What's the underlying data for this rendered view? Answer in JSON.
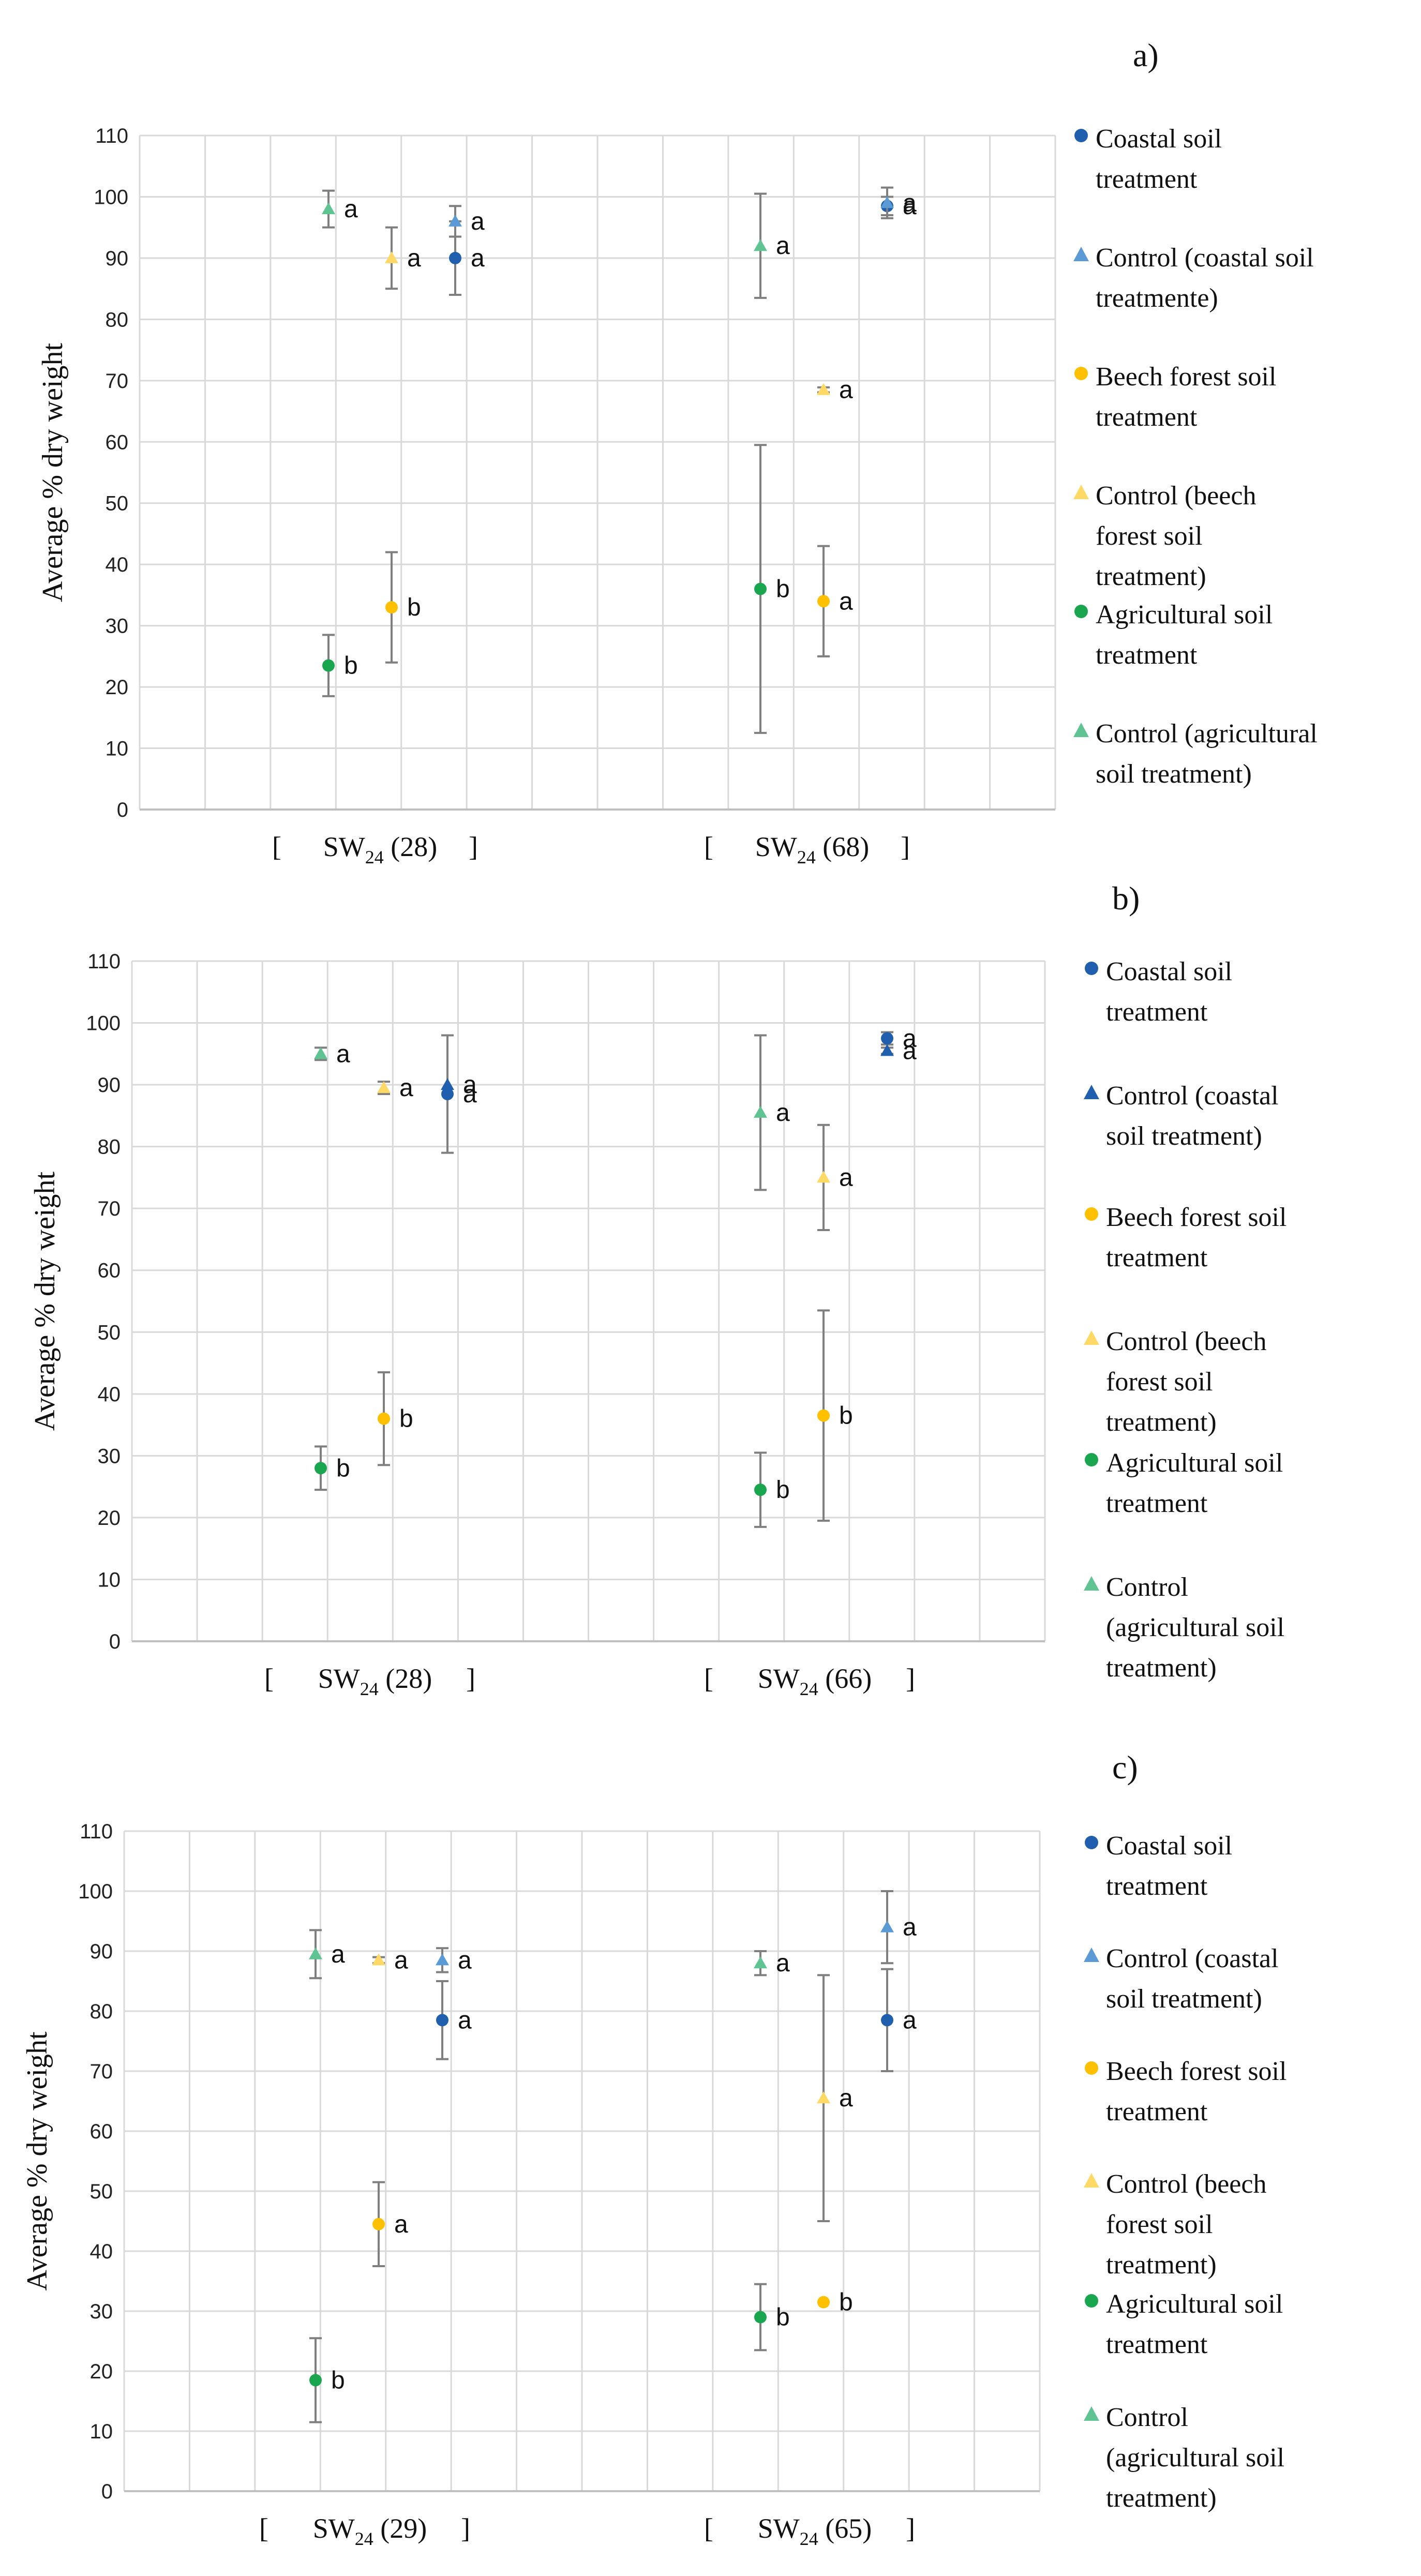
{
  "colors": {
    "coastal": "#1f5fae",
    "coastal_ctrl": "#5b9bd5",
    "beech": "#ffc000",
    "beech_ctrl": "#ffd966",
    "agri": "#1aa64f",
    "agri_ctrl": "#5fc491",
    "grid": "#d9d9d9",
    "axis": "#bfbfbf",
    "errbar": "#7f7f7f"
  },
  "legend": [
    {
      "label": "Coastal soil\ntreatment",
      "marker": "circle",
      "color_key": "coastal"
    },
    {
      "label": "Control (coastal soil\ntreatmente)",
      "marker": "triangle",
      "color_key": "coastal_ctrl"
    },
    {
      "label": "Beech forest soil\ntreatment",
      "marker": "circle",
      "color_key": "beech"
    },
    {
      "label": "Control (beech\nforest soil\ntreatment)",
      "marker": "triangle",
      "color_key": "beech_ctrl"
    },
    {
      "label": "Agricultural soil\ntreatment",
      "marker": "circle",
      "color_key": "agri"
    },
    {
      "label": "Control (agricultural\nsoil treatment)",
      "marker": "triangle",
      "color_key": "agri_ctrl"
    }
  ],
  "chart_data": [
    {
      "panel_label": "a)",
      "type": "scatter",
      "ylabel": "Average % dry weight",
      "ylim": [
        0,
        110
      ],
      "yticks": [
        0,
        10,
        20,
        30,
        40,
        50,
        60,
        70,
        80,
        90,
        100,
        110
      ],
      "categories": [
        {
          "bracket_open": "[",
          "name": "SW",
          "sub": "24",
          "n": "(28)",
          "bracket_close": "]"
        },
        {
          "bracket_open": "[",
          "name": "SW",
          "sub": "24",
          "n": "(68)",
          "bracket_close": "]"
        }
      ],
      "legend_labels": [
        "Coastal soil\ntreatment",
        "Control (coastal soil\ntreatmente)",
        "Beech forest soil\ntreatment",
        "Control (beech\nforest soil\ntreatment)",
        "Agricultural soil\ntreatment",
        "Control (agricultural\nsoil treatment)"
      ],
      "series": [
        {
          "name": "Coastal soil treatment",
          "color_key": "coastal",
          "marker": "circle",
          "points": [
            {
              "cat": 0,
              "slot": 2,
              "y": 90,
              "err": 6,
              "label": "a"
            },
            {
              "cat": 1,
              "slot": 2,
              "y": 98.5,
              "err": 1.5,
              "label": "a"
            }
          ]
        },
        {
          "name": "Control (coastal soil treatmente)",
          "color_key": "coastal_ctrl",
          "marker": "triangle",
          "points": [
            {
              "cat": 0,
              "slot": 2,
              "y": 96,
              "err": 2.5,
              "label": "a"
            },
            {
              "cat": 1,
              "slot": 2,
              "y": 99,
              "err": 2.5,
              "label": "a"
            }
          ]
        },
        {
          "name": "Beech forest soil treatment",
          "color_key": "beech",
          "marker": "circle",
          "points": [
            {
              "cat": 0,
              "slot": 1,
              "y": 33,
              "err": 9,
              "label": "b"
            },
            {
              "cat": 1,
              "slot": 1,
              "y": 34,
              "err": 9,
              "label": "a"
            }
          ]
        },
        {
          "name": "Control (beech forest soil treatment)",
          "color_key": "beech_ctrl",
          "marker": "triangle",
          "points": [
            {
              "cat": 0,
              "slot": 1,
              "y": 90,
              "err": 5,
              "label": "a"
            },
            {
              "cat": 1,
              "slot": 1,
              "y": 68.5,
              "err": 0.4,
              "label": "a"
            }
          ]
        },
        {
          "name": "Agricultural soil treatment",
          "color_key": "agri",
          "marker": "circle",
          "points": [
            {
              "cat": 0,
              "slot": 0,
              "y": 23.5,
              "err": 5,
              "label": "b"
            },
            {
              "cat": 1,
              "slot": 0,
              "y": 36,
              "err": 23.5,
              "label": "b"
            }
          ]
        },
        {
          "name": "Control (agricultural soil treatment)",
          "color_key": "agri_ctrl",
          "marker": "triangle",
          "points": [
            {
              "cat": 0,
              "slot": 0,
              "y": 98,
              "err": 3,
              "label": "a"
            },
            {
              "cat": 1,
              "slot": 0,
              "y": 92,
              "err": 8.5,
              "label": "a"
            }
          ]
        }
      ]
    },
    {
      "panel_label": "b)",
      "type": "scatter",
      "ylabel": "Average % dry weight",
      "ylim": [
        0,
        110
      ],
      "yticks": [
        0,
        10,
        20,
        30,
        40,
        50,
        60,
        70,
        80,
        90,
        100,
        110
      ],
      "categories": [
        {
          "bracket_open": "[",
          "name": "SW",
          "sub": "24",
          "n": "(28)",
          "bracket_close": "]"
        },
        {
          "bracket_open": "[",
          "name": "SW",
          "sub": "24",
          "n": "(66)",
          "bracket_close": "]"
        }
      ],
      "legend_labels": [
        "Coastal soil\ntreatment",
        "Control (coastal\nsoil treatment)",
        "Beech forest soil\ntreatment",
        "Control (beech\nforest soil\ntreatment)",
        "Agricultural soil\ntreatment",
        "Control\n(agricultural soil\ntreatment)"
      ],
      "series": [
        {
          "name": "Coastal soil treatment",
          "color_key": "coastal",
          "marker": "circle",
          "points": [
            {
              "cat": 0,
              "slot": 2,
              "y": 88.5,
              "err": 9.5,
              "label": "a"
            },
            {
              "cat": 1,
              "slot": 2,
              "y": 97.5,
              "err": 1,
              "label": "a"
            }
          ]
        },
        {
          "name": "Control (coastal soil treatment)",
          "color_key": "coastal",
          "marker": "triangle",
          "points": [
            {
              "cat": 0,
              "slot": 2,
              "y": 90,
              "err": 0,
              "label": "a"
            },
            {
              "cat": 1,
              "slot": 2,
              "y": 95.5,
              "err": 0.5,
              "label": "a"
            }
          ]
        },
        {
          "name": "Beech forest soil treatment",
          "color_key": "beech",
          "marker": "circle",
          "points": [
            {
              "cat": 0,
              "slot": 1,
              "y": 36,
              "err": 7.5,
              "label": "b"
            },
            {
              "cat": 1,
              "slot": 1,
              "y": 36.5,
              "err": 17,
              "label": "b"
            }
          ]
        },
        {
          "name": "Control (beech forest soil treatment)",
          "color_key": "beech_ctrl",
          "marker": "triangle",
          "points": [
            {
              "cat": 0,
              "slot": 1,
              "y": 89.5,
              "err": 1,
              "label": "a"
            },
            {
              "cat": 1,
              "slot": 1,
              "y": 75,
              "err": 8.5,
              "label": "a"
            }
          ]
        },
        {
          "name": "Agricultural soil treatment",
          "color_key": "agri",
          "marker": "circle",
          "points": [
            {
              "cat": 0,
              "slot": 0,
              "y": 28,
              "err": 3.5,
              "label": "b"
            },
            {
              "cat": 1,
              "slot": 0,
              "y": 24.5,
              "err": 6,
              "label": "b"
            }
          ]
        },
        {
          "name": "Control (agricultural soil treatment)",
          "color_key": "agri_ctrl",
          "marker": "triangle",
          "points": [
            {
              "cat": 0,
              "slot": 0,
              "y": 95,
              "err": 1,
              "label": "a"
            },
            {
              "cat": 1,
              "slot": 0,
              "y": 85.5,
              "err": 12.5,
              "label": "a"
            }
          ]
        }
      ]
    },
    {
      "panel_label": "c)",
      "type": "scatter",
      "ylabel": "Average % dry weight",
      "ylim": [
        0,
        110
      ],
      "yticks": [
        0,
        10,
        20,
        30,
        40,
        50,
        60,
        70,
        80,
        90,
        100,
        110
      ],
      "categories": [
        {
          "bracket_open": "[",
          "name": "SW",
          "sub": "24",
          "n": "(29)",
          "bracket_close": "]"
        },
        {
          "bracket_open": "[",
          "name": "SW",
          "sub": "24",
          "n": "(65)",
          "bracket_close": "]"
        }
      ],
      "legend_labels": [
        "Coastal soil\ntreatment",
        "Control (coastal\nsoil treatment)",
        "Beech forest soil\ntreatment",
        "Control (beech\nforest soil\ntreatment)",
        "Agricultural soil\ntreatment",
        "Control\n(agricultural soil\ntreatment)"
      ],
      "series": [
        {
          "name": "Coastal soil treatment",
          "color_key": "coastal",
          "marker": "circle",
          "points": [
            {
              "cat": 0,
              "slot": 2,
              "y": 78.5,
              "err": 6.5,
              "label": "a"
            },
            {
              "cat": 1,
              "slot": 2,
              "y": 78.5,
              "err": 8.5,
              "label": "a"
            }
          ]
        },
        {
          "name": "Control (coastal soil treatment)",
          "color_key": "coastal_ctrl",
          "marker": "triangle",
          "points": [
            {
              "cat": 0,
              "slot": 2,
              "y": 88.5,
              "err": 2,
              "label": "a"
            },
            {
              "cat": 1,
              "slot": 2,
              "y": 94,
              "err": 6,
              "label": "a"
            }
          ]
        },
        {
          "name": "Beech forest soil treatment",
          "color_key": "beech",
          "marker": "circle",
          "points": [
            {
              "cat": 0,
              "slot": 1,
              "y": 44.5,
              "err": 7,
              "label": "a"
            },
            {
              "cat": 1,
              "slot": 1,
              "y": 31.5,
              "err": 0,
              "label": "b"
            }
          ]
        },
        {
          "name": "Control (beech forest soil treatment)",
          "color_key": "beech_ctrl",
          "marker": "triangle",
          "points": [
            {
              "cat": 0,
              "slot": 1,
              "y": 88.5,
              "err": 0.5,
              "label": "a"
            },
            {
              "cat": 1,
              "slot": 1,
              "y": 65.5,
              "err": 20.5,
              "label": "a"
            }
          ]
        },
        {
          "name": "Agricultural soil treatment",
          "color_key": "agri",
          "marker": "circle",
          "points": [
            {
              "cat": 0,
              "slot": 0,
              "y": 18.5,
              "err": 7,
              "label": "b"
            },
            {
              "cat": 1,
              "slot": 0,
              "y": 29,
              "err": 5.5,
              "label": "b"
            }
          ]
        },
        {
          "name": "Control (agricultural soil treatment)",
          "color_key": "agri_ctrl",
          "marker": "triangle",
          "points": [
            {
              "cat": 0,
              "slot": 0,
              "y": 89.5,
              "err": 4,
              "label": "a"
            },
            {
              "cat": 1,
              "slot": 0,
              "y": 88,
              "err": 2,
              "label": "a"
            }
          ]
        }
      ]
    }
  ]
}
